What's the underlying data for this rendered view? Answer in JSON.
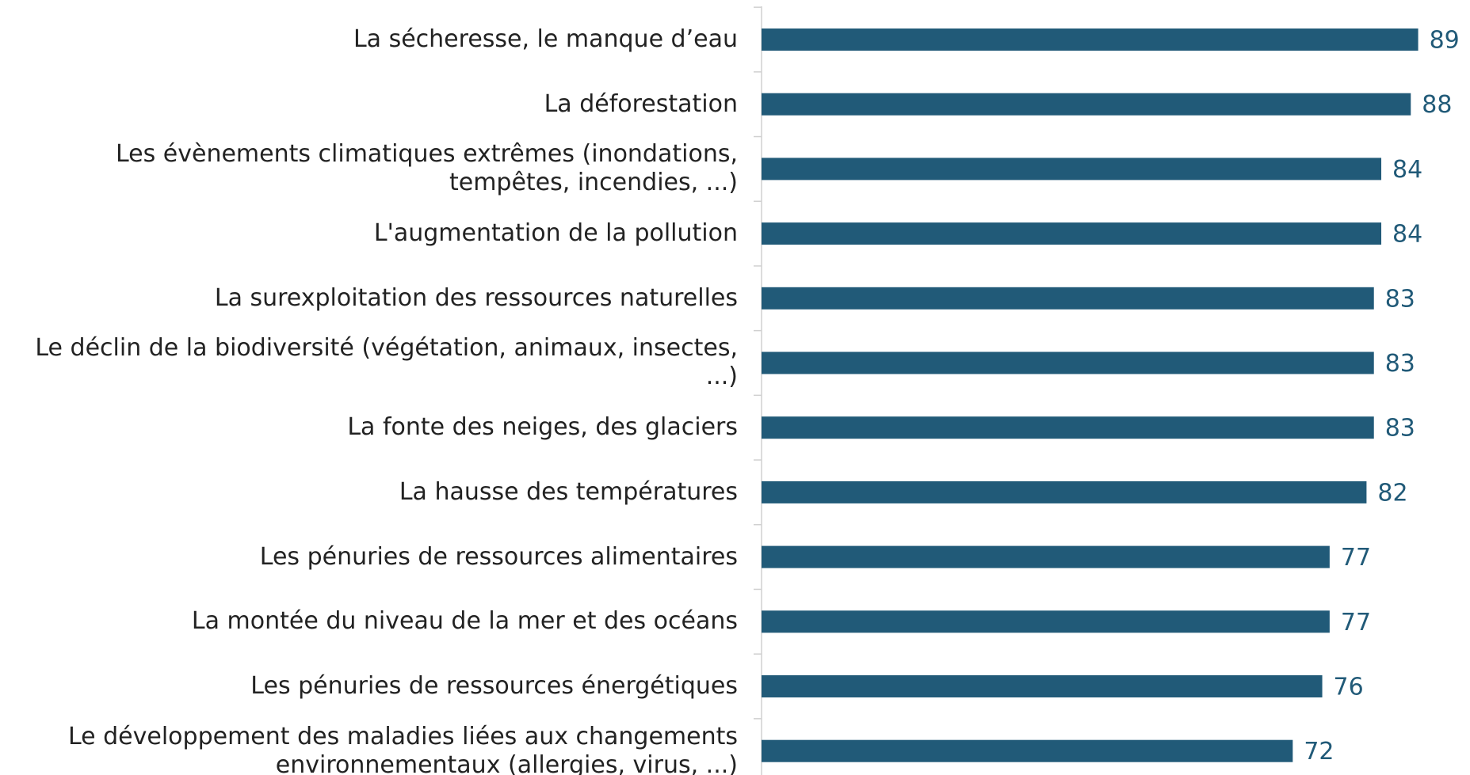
{
  "chart_data": {
    "type": "bar",
    "orientation": "horizontal",
    "color": "#215a78",
    "categories": [
      "La sécheresse, le manque d’eau",
      "La déforestation",
      "Les évènements climatiques extrêmes (inondations, tempêtes, incendies, ...)",
      "L'augmentation de la pollution",
      "La surexploitation des ressources naturelles",
      "Le déclin de la biodiversité (végétation, animaux, insectes, ...)",
      "La fonte des neiges, des glaciers",
      "La hausse des températures",
      "Les pénuries de ressources alimentaires",
      "La montée du niveau de la mer et des océans",
      "Les pénuries de ressources énergétiques",
      "Le développement des maladies liées aux changements environnementaux (allergies, virus, ...)"
    ],
    "values": [
      89,
      88,
      84,
      84,
      83,
      83,
      83,
      82,
      77,
      77,
      76,
      72
    ]
  }
}
